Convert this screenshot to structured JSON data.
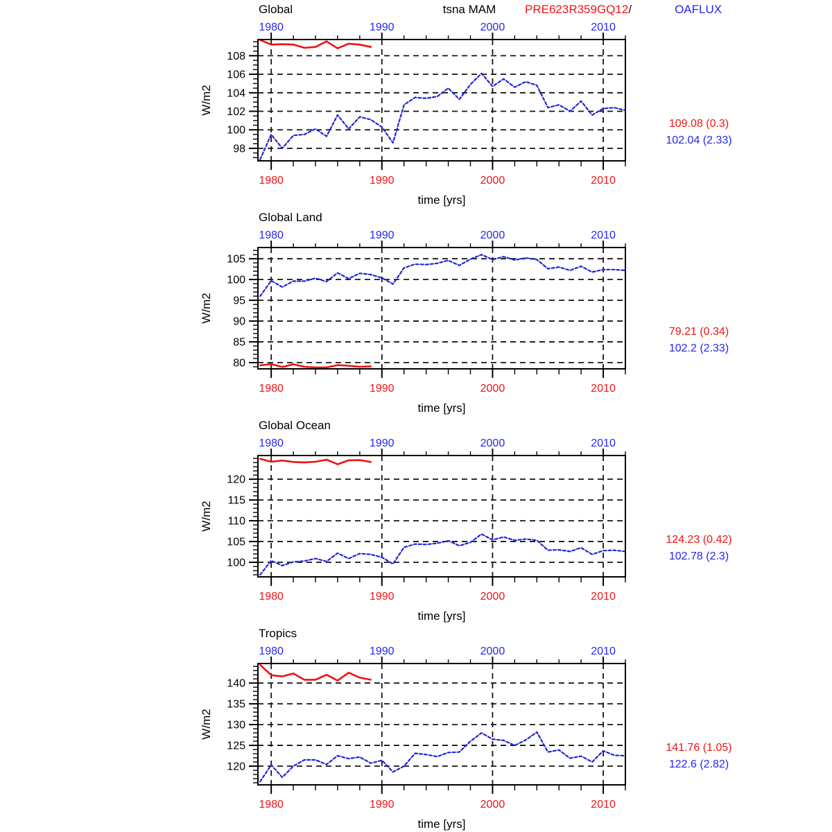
{
  "header": {
    "center_title": "tsna MAM",
    "model_id": "PRE623R359GQ12",
    "separator": "/",
    "obs_name": "OAFLUX"
  },
  "colors": {
    "model_line": "#ee1111",
    "model_text": "#f51212",
    "obs_line": "#2323d8",
    "obs_text": "#2525f5",
    "grid": "#141414",
    "frame": "#000000",
    "title_text": "#000000"
  },
  "axis": {
    "xlabel": "time [yrs]",
    "ylabel": "W/m2",
    "xlim": [
      1978.8,
      2012.0
    ],
    "x_ticks": [
      1980,
      1990,
      2000,
      2010
    ],
    "x_minor_step": 2,
    "top_tick_label_color": "obs",
    "bottom_tick_label_color": "model",
    "grid": true
  },
  "chart_data": [
    {
      "type": "line",
      "title": "Global",
      "ylabel": "W/m2",
      "xlabel": "time [yrs]",
      "ylim": [
        96.65,
        109.75
      ],
      "y_ticks": [
        98,
        100,
        102,
        104,
        106,
        108
      ],
      "y_minor_step": 0.5,
      "stats": {
        "model": "109.08 (0.3)",
        "obs": "102.04 (2.33)"
      },
      "series": [
        {
          "name": "PRE623R359GQ12",
          "role": "model",
          "style": "solid",
          "x_start": 1979,
          "x_step": 1,
          "values": [
            109.7,
            109.2,
            109.25,
            109.2,
            108.85,
            108.95,
            109.55,
            108.8,
            109.3,
            109.2,
            108.95
          ]
        },
        {
          "name": "OAFLUX",
          "role": "obs",
          "style": "dashed",
          "x_start": 1979,
          "x_step": 1,
          "values": [
            96.8,
            99.5,
            98.0,
            99.4,
            99.5,
            100.1,
            99.3,
            101.6,
            100.1,
            101.4,
            101.1,
            100.3,
            98.6,
            102.7,
            103.5,
            103.4,
            103.6,
            104.5,
            103.3,
            104.9,
            106.1,
            104.7,
            105.5,
            104.6,
            105.2,
            104.8,
            102.4,
            102.7,
            102.0,
            103.1,
            101.6,
            102.3,
            102.4,
            102.1
          ]
        }
      ]
    },
    {
      "type": "line",
      "title": "Global Land",
      "ylabel": "W/m2",
      "xlabel": "time [yrs]",
      "ylim": [
        78.5,
        107.7
      ],
      "y_ticks": [
        80,
        85,
        90,
        95,
        100,
        105
      ],
      "y_minor_step": 1,
      "stats": {
        "model": "79.21 (0.34)",
        "obs": "102.2 (2.33)"
      },
      "series": [
        {
          "name": "PRE623R359GQ12",
          "role": "model",
          "style": "solid",
          "x_start": 1979,
          "x_step": 1,
          "values": [
            79.35,
            79.65,
            78.95,
            79.6,
            79.0,
            78.85,
            78.85,
            79.4,
            79.25,
            79.0,
            79.1
          ]
        },
        {
          "name": "OAFLUX",
          "role": "obs",
          "style": "dashed",
          "x_start": 1979,
          "x_step": 1,
          "values": [
            96.0,
            99.7,
            98.2,
            99.6,
            99.6,
            100.3,
            99.5,
            101.6,
            100.2,
            101.5,
            101.2,
            100.4,
            98.9,
            102.8,
            103.7,
            103.6,
            103.9,
            104.6,
            103.4,
            104.9,
            106.0,
            104.8,
            105.5,
            104.7,
            105.2,
            104.8,
            102.6,
            103.0,
            102.2,
            103.2,
            101.8,
            102.4,
            102.4,
            102.2
          ]
        }
      ]
    },
    {
      "type": "line",
      "title": "Global Ocean",
      "ylabel": "W/m2",
      "xlabel": "time [yrs]",
      "ylim": [
        96.5,
        125.7
      ],
      "y_ticks": [
        100,
        105,
        110,
        115,
        120
      ],
      "y_minor_step": 1,
      "stats": {
        "model": "124.23 (0.42)",
        "obs": "102.78 (2.3)"
      },
      "series": [
        {
          "name": "PRE623R359GQ12",
          "role": "model",
          "style": "solid",
          "x_start": 1979,
          "x_step": 1,
          "values": [
            124.9,
            124.2,
            124.5,
            124.15,
            124.05,
            124.2,
            124.7,
            123.6,
            124.55,
            124.6,
            124.15
          ]
        },
        {
          "name": "OAFLUX",
          "role": "obs",
          "style": "dashed",
          "x_start": 1979,
          "x_step": 1,
          "values": [
            97.0,
            100.4,
            99.2,
            100.1,
            100.3,
            100.9,
            100.2,
            102.2,
            100.9,
            102.1,
            101.9,
            101.2,
            99.6,
            103.6,
            104.4,
            104.3,
            104.6,
            105.2,
            104.0,
            104.8,
            106.8,
            105.4,
            106.1,
            105.3,
            105.6,
            105.3,
            102.9,
            103.0,
            102.6,
            103.5,
            101.9,
            102.8,
            102.9,
            102.6
          ]
        }
      ]
    },
    {
      "type": "line",
      "title": "Tropics",
      "ylabel": "W/m2",
      "xlabel": "time [yrs]",
      "ylim": [
        115.5,
        144.7
      ],
      "y_ticks": [
        120,
        125,
        130,
        135,
        140
      ],
      "y_minor_step": 1,
      "stats": {
        "model": "141.76 (1.05)",
        "obs": "122.6 (2.82)"
      },
      "series": [
        {
          "name": "PRE623R359GQ12",
          "role": "model",
          "style": "solid",
          "x_start": 1979,
          "x_step": 1,
          "values": [
            144.4,
            141.9,
            141.6,
            142.3,
            140.8,
            140.8,
            142.0,
            140.6,
            142.5,
            141.3,
            140.8
          ]
        },
        {
          "name": "OAFLUX",
          "role": "obs",
          "style": "dashed",
          "x_start": 1979,
          "x_step": 1,
          "values": [
            116.3,
            120.3,
            117.3,
            120.0,
            121.5,
            121.5,
            120.4,
            122.5,
            121.8,
            122.2,
            120.7,
            121.4,
            118.6,
            120.0,
            123.1,
            122.8,
            122.3,
            123.3,
            123.4,
            126.0,
            128.0,
            126.5,
            126.2,
            125.0,
            126.3,
            128.2,
            123.4,
            123.9,
            121.9,
            122.4,
            121.0,
            123.7,
            122.6,
            122.5
          ]
        }
      ]
    }
  ]
}
